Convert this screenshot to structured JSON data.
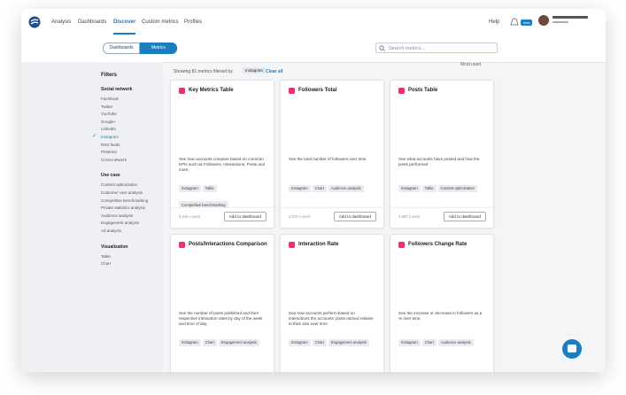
{
  "nav": [
    "Analysis",
    "Dashboards",
    "Discover",
    "Custom metrics",
    "Profiles"
  ],
  "header": {
    "help": "Help",
    "badge": "new"
  },
  "tabs": [
    "Dashboards",
    "Metrics"
  ],
  "search": {
    "placeholder": "Search metrics..."
  },
  "filter_bar": {
    "text": "Showing 81 metrics filtered by",
    "chip": "Instagram",
    "chip_close": "×",
    "clear": "Clear all",
    "sort": "Most used"
  },
  "sidebar": {
    "title": "Filters",
    "groups": [
      {
        "title": "Social network",
        "items": [
          "Facebook",
          "Twitter",
          "YouTube",
          "Google+",
          "LinkedIn",
          "Instagram",
          "RSS feeds",
          "Pinterest",
          "Cross-network"
        ]
      },
      {
        "title": "Use case",
        "items": [
          "Content optimization",
          "Customer care analysis",
          "Competitive benchmarking",
          "Private statistics analysis",
          "Audience analysis",
          "Engagement analysis",
          "Ad analysis"
        ]
      },
      {
        "title": "Visualization",
        "items": [
          "Table",
          "Chart"
        ]
      }
    ]
  },
  "cards": [
    {
      "title": "Key Metrics Table",
      "description": "See how accounts compare based on common KPIs such as Followers, Interactions, Posts and more.",
      "tags": [
        "Instagram",
        "Table",
        "Competitive benchmarking"
      ],
      "used": "5,846 x used",
      "button": "Add to dashboard"
    },
    {
      "title": "Followers Total",
      "description": "See the total number of followers over time.",
      "tags": [
        "Instagram",
        "Chart",
        "Audience analysis"
      ],
      "used": "3,910 x used",
      "button": "Add to dashboard"
    },
    {
      "title": "Posts Table",
      "description": "See what accounts have posted and how the posts performed",
      "tags": [
        "Instagram",
        "Table",
        "Content optimization"
      ],
      "used": "2,983 x used",
      "button": "Add to dashboard"
    },
    {
      "title": "Posts/Interactions Comparison",
      "description": "See the number of posts published and their respective interaction rates by day of the week and time of day.",
      "tags": [
        "Instagram",
        "Chart",
        "Engagement analysis"
      ]
    },
    {
      "title": "Interaction Rate",
      "description": "See how accounts perform based on interactions the accounts' posts earned relative to their size over time.",
      "tags": [
        "Instagram",
        "Chart",
        "Engagement analysis"
      ]
    },
    {
      "title": "Followers Change Rate",
      "description": "See the increase or decrease in followers as a % over time.",
      "tags": [
        "Instagram",
        "Chart",
        "Audience analysis"
      ]
    }
  ]
}
